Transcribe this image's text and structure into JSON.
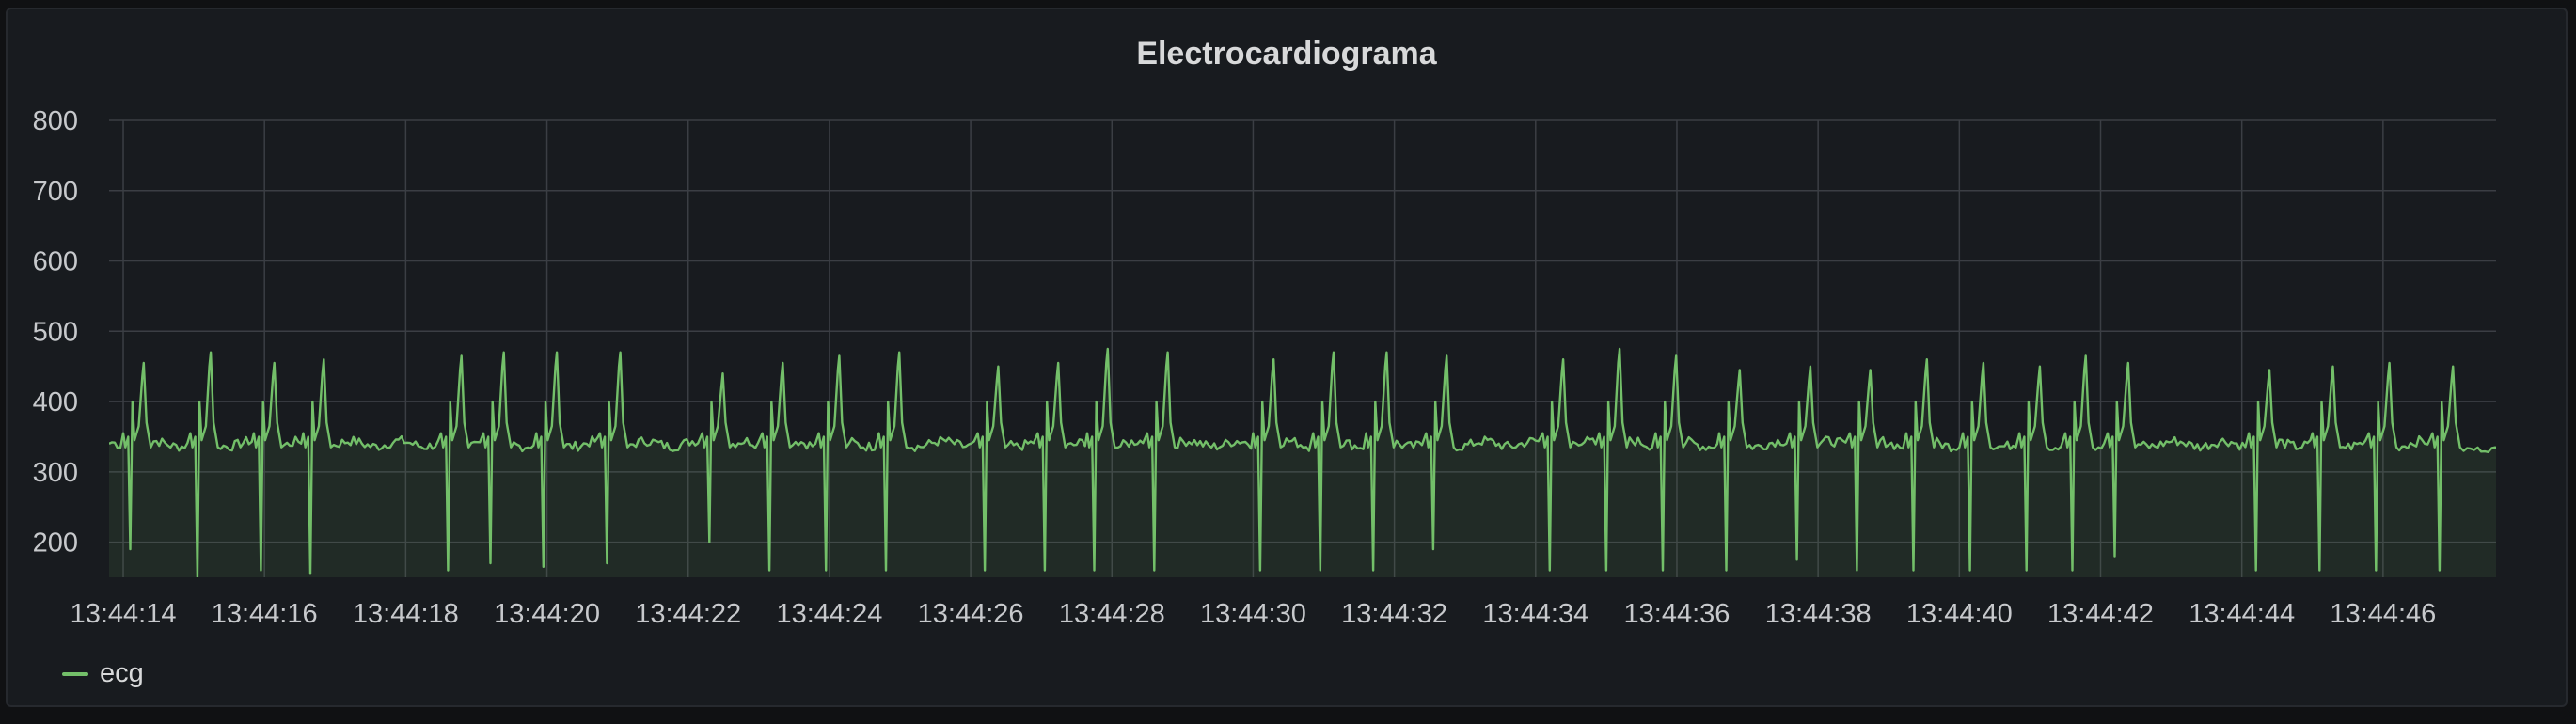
{
  "panel": {
    "title": "Electrocardiograma"
  },
  "colors": {
    "background": "#181b1f",
    "grid": "#3b3e44",
    "series": "#73bf69",
    "text": "#c7c9cc"
  },
  "chart_data": {
    "type": "line",
    "title": "Electrocardiograma",
    "xlabel": "",
    "ylabel": "",
    "x_axis_type": "time",
    "xlim": [
      "13:44:13.8",
      "13:44:47.6"
    ],
    "ylim": [
      150,
      800
    ],
    "y_ticks": [
      200,
      300,
      400,
      500,
      600,
      700,
      800
    ],
    "x_ticks": [
      "13:44:14",
      "13:44:16",
      "13:44:18",
      "13:44:20",
      "13:44:22",
      "13:44:24",
      "13:44:26",
      "13:44:28",
      "13:44:30",
      "13:44:32",
      "13:44:34",
      "13:44:36",
      "13:44:38",
      "13:44:40",
      "13:44:42",
      "13:44:44",
      "13:44:46"
    ],
    "grid": true,
    "fill": "area",
    "legend": "bottom-left",
    "baseline_value": 340,
    "series": [
      {
        "name": "ecg",
        "beats": [
          {
            "t": "13:44:14.10",
            "q": 190,
            "r": 455
          },
          {
            "t": "13:44:15.05",
            "q": 150,
            "r": 470
          },
          {
            "t": "13:44:15.95",
            "q": 160,
            "r": 455
          },
          {
            "t": "13:44:16.65",
            "q": 155,
            "r": 460
          },
          {
            "t": "13:44:18.60",
            "q": 160,
            "r": 465
          },
          {
            "t": "13:44:19.20",
            "q": 170,
            "r": 470
          },
          {
            "t": "13:44:19.95",
            "q": 165,
            "r": 470
          },
          {
            "t": "13:44:20.85",
            "q": 170,
            "r": 470
          },
          {
            "t": "13:44:22.30",
            "q": 200,
            "r": 440
          },
          {
            "t": "13:44:23.15",
            "q": 160,
            "r": 455
          },
          {
            "t": "13:44:23.95",
            "q": 160,
            "r": 465
          },
          {
            "t": "13:44:24.80",
            "q": 160,
            "r": 470
          },
          {
            "t": "13:44:26.20",
            "q": 160,
            "r": 450
          },
          {
            "t": "13:44:27.05",
            "q": 160,
            "r": 455
          },
          {
            "t": "13:44:27.75",
            "q": 160,
            "r": 475
          },
          {
            "t": "13:44:28.60",
            "q": 160,
            "r": 470
          },
          {
            "t": "13:44:30.10",
            "q": 160,
            "r": 460
          },
          {
            "t": "13:44:30.95",
            "q": 160,
            "r": 470
          },
          {
            "t": "13:44:31.70",
            "q": 160,
            "r": 470
          },
          {
            "t": "13:44:32.55",
            "q": 190,
            "r": 465
          },
          {
            "t": "13:44:34.20",
            "q": 160,
            "r": 460
          },
          {
            "t": "13:44:35.00",
            "q": 160,
            "r": 475
          },
          {
            "t": "13:44:35.80",
            "q": 160,
            "r": 465
          },
          {
            "t": "13:44:36.70",
            "q": 160,
            "r": 445
          },
          {
            "t": "13:44:37.70",
            "q": 175,
            "r": 450
          },
          {
            "t": "13:44:38.55",
            "q": 160,
            "r": 445
          },
          {
            "t": "13:44:39.35",
            "q": 160,
            "r": 460
          },
          {
            "t": "13:44:40.15",
            "q": 160,
            "r": 455
          },
          {
            "t": "13:44:40.95",
            "q": 160,
            "r": 450
          },
          {
            "t": "13:44:41.60",
            "q": 160,
            "r": 465
          },
          {
            "t": "13:44:42.20",
            "q": 180,
            "r": 455
          },
          {
            "t": "13:44:44.20",
            "q": 160,
            "r": 445
          },
          {
            "t": "13:44:45.10",
            "q": 160,
            "r": 450
          },
          {
            "t": "13:44:45.90",
            "q": 160,
            "r": 455
          },
          {
            "t": "13:44:46.80",
            "q": 160,
            "r": 450
          }
        ]
      }
    ]
  },
  "legend": {
    "items": [
      {
        "label": "ecg",
        "color": "#73bf69"
      }
    ]
  }
}
